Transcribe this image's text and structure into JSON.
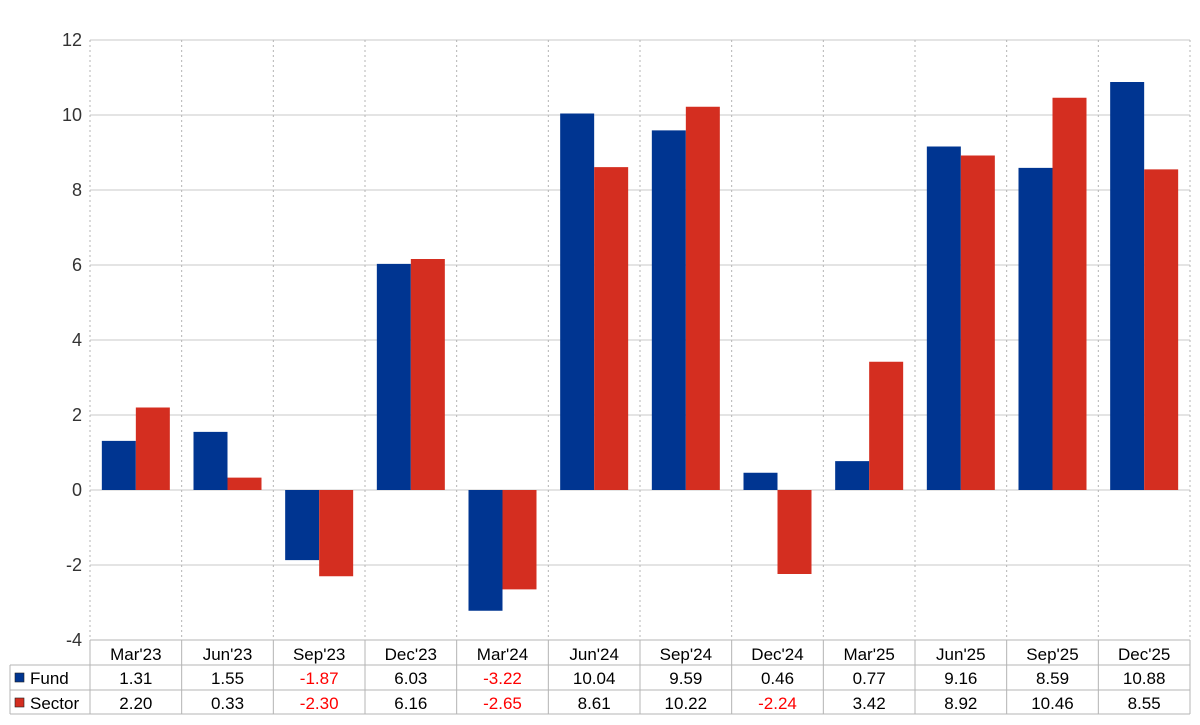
{
  "chart_data": {
    "type": "bar",
    "categories": [
      "Mar'23",
      "Jun'23",
      "Sep'23",
      "Dec'23",
      "Mar'24",
      "Jun'24",
      "Sep'24",
      "Dec'24",
      "Mar'25",
      "Jun'25",
      "Sep'25",
      "Dec'25"
    ],
    "series": [
      {
        "name": "Fund",
        "color": "#003591",
        "values": [
          1.31,
          1.55,
          -1.87,
          6.03,
          -3.22,
          10.04,
          9.59,
          0.46,
          0.77,
          9.16,
          8.59,
          10.88
        ],
        "labels": [
          "1.31",
          "1.55",
          "-1.87",
          "6.03",
          "-3.22",
          "10.04",
          "9.59",
          "0.46",
          "0.77",
          "9.16",
          "8.59",
          "10.88"
        ]
      },
      {
        "name": "Sector",
        "color": "#d42e20",
        "values": [
          2.2,
          0.33,
          -2.3,
          6.16,
          -2.65,
          8.61,
          10.22,
          -2.24,
          3.42,
          8.92,
          10.46,
          8.55
        ],
        "labels": [
          "2.20",
          "0.33",
          "-2.30",
          "6.16",
          "-2.65",
          "8.61",
          "10.22",
          "-2.24",
          "3.42",
          "8.92",
          "10.46",
          "8.55"
        ]
      }
    ],
    "ylim": [
      -4,
      12
    ],
    "yticks": [
      "-4",
      "-2",
      "0",
      "2",
      "4",
      "6",
      "8",
      "10",
      "12"
    ],
    "title": "",
    "xlabel": "",
    "ylabel": "",
    "grid": true,
    "legend": "data table below chart",
    "negative_value_color": "#ff0000"
  }
}
